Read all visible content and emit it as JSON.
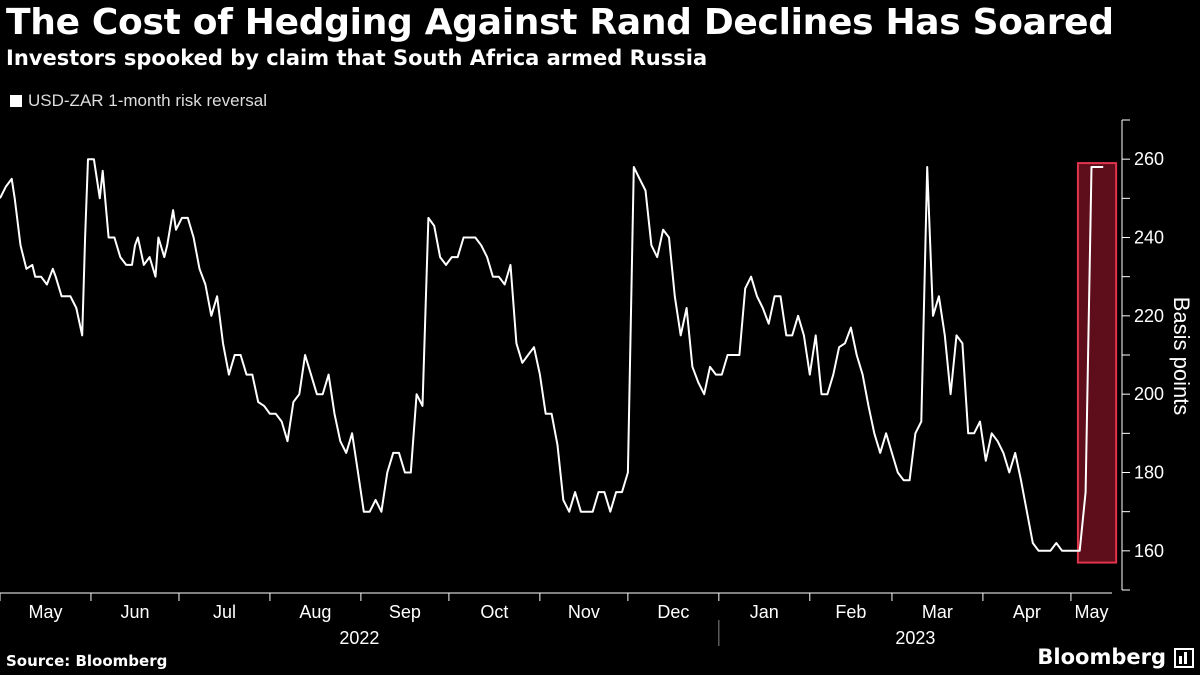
{
  "title": "The Cost of Hedging Against Rand Declines Has Soared",
  "subtitle": "Investors spooked by claim that South Africa armed Russia",
  "source": "Source: Bloomberg",
  "brand": "Bloomberg",
  "colors": {
    "background": "#000000",
    "line": "#ffffff",
    "highlight_fill": "#6e0f1f",
    "highlight_stroke": "#e0344b",
    "grid": "#2a2a2a"
  },
  "chart_data": {
    "type": "line",
    "title": "The Cost of Hedging Against Rand Declines Has Soared",
    "subtitle": "Investors spooked by claim that South Africa armed Russia",
    "ylabel": "Basis points",
    "ylim": [
      150,
      270
    ],
    "y_ticks": [
      160,
      180,
      200,
      220,
      240,
      260
    ],
    "y_axis_side": "right",
    "grid": false,
    "legend_position": "top-left",
    "x_month_labels": [
      "May",
      "Jun",
      "Jul",
      "Aug",
      "Sep",
      "Oct",
      "Nov",
      "Dec",
      "Jan",
      "Feb",
      "Mar",
      "Apr",
      "May"
    ],
    "x_year_labels": [
      "2022",
      "2023"
    ],
    "series": [
      {
        "name": "USD-ZAR 1-month risk reversal",
        "x": [
          "2022-05-01",
          "2022-05-03",
          "2022-05-05",
          "2022-05-06",
          "2022-05-08",
          "2022-05-10",
          "2022-05-12",
          "2022-05-13",
          "2022-05-15",
          "2022-05-17",
          "2022-05-19",
          "2022-05-20",
          "2022-05-22",
          "2022-05-23",
          "2022-05-25",
          "2022-05-27",
          "2022-05-29",
          "2022-05-30",
          "2022-05-31",
          "2022-06-02",
          "2022-06-04",
          "2022-06-05",
          "2022-06-07",
          "2022-06-09",
          "2022-06-11",
          "2022-06-13",
          "2022-06-15",
          "2022-06-16",
          "2022-06-17",
          "2022-06-19",
          "2022-06-21",
          "2022-06-23",
          "2022-06-24",
          "2022-06-26",
          "2022-06-27",
          "2022-06-29",
          "2022-06-30",
          "2022-07-02",
          "2022-07-04",
          "2022-07-06",
          "2022-07-08",
          "2022-07-10",
          "2022-07-12",
          "2022-07-14",
          "2022-07-16",
          "2022-07-18",
          "2022-07-20",
          "2022-07-22",
          "2022-07-24",
          "2022-07-26",
          "2022-07-28",
          "2022-07-30",
          "2022-08-01",
          "2022-08-03",
          "2022-08-05",
          "2022-08-07",
          "2022-08-09",
          "2022-08-11",
          "2022-08-13",
          "2022-08-15",
          "2022-08-17",
          "2022-08-19",
          "2022-08-21",
          "2022-08-23",
          "2022-08-25",
          "2022-08-27",
          "2022-08-29",
          "2022-08-31",
          "2022-09-02",
          "2022-09-04",
          "2022-09-06",
          "2022-09-08",
          "2022-09-10",
          "2022-09-12",
          "2022-09-14",
          "2022-09-16",
          "2022-09-18",
          "2022-09-20",
          "2022-09-22",
          "2022-09-24",
          "2022-09-26",
          "2022-09-28",
          "2022-09-30",
          "2022-10-02",
          "2022-10-04",
          "2022-10-06",
          "2022-10-08",
          "2022-10-10",
          "2022-10-12",
          "2022-10-14",
          "2022-10-16",
          "2022-10-18",
          "2022-10-20",
          "2022-10-22",
          "2022-10-24",
          "2022-10-26",
          "2022-10-28",
          "2022-10-30",
          "2022-11-01",
          "2022-11-03",
          "2022-11-05",
          "2022-11-07",
          "2022-11-09",
          "2022-11-11",
          "2022-11-13",
          "2022-11-15",
          "2022-11-17",
          "2022-11-19",
          "2022-11-21",
          "2022-11-23",
          "2022-11-25",
          "2022-11-27",
          "2022-11-29",
          "2022-12-01",
          "2022-12-03",
          "2022-12-05",
          "2022-12-07",
          "2022-12-09",
          "2022-12-11",
          "2022-12-13",
          "2022-12-15",
          "2022-12-17",
          "2022-12-19",
          "2022-12-21",
          "2022-12-23",
          "2022-12-25",
          "2022-12-27",
          "2022-12-29",
          "2022-12-31",
          "2023-01-02",
          "2023-01-04",
          "2023-01-06",
          "2023-01-08",
          "2023-01-10",
          "2023-01-12",
          "2023-01-14",
          "2023-01-16",
          "2023-01-18",
          "2023-01-20",
          "2023-01-22",
          "2023-01-24",
          "2023-01-26",
          "2023-01-28",
          "2023-01-30",
          "2023-02-01",
          "2023-02-03",
          "2023-02-05",
          "2023-02-07",
          "2023-02-09",
          "2023-02-11",
          "2023-02-13",
          "2023-02-15",
          "2023-02-17",
          "2023-02-19",
          "2023-02-21",
          "2023-02-23",
          "2023-02-25",
          "2023-02-27",
          "2023-03-01",
          "2023-03-03",
          "2023-03-05",
          "2023-03-07",
          "2023-03-09",
          "2023-03-11",
          "2023-03-13",
          "2023-03-15",
          "2023-03-17",
          "2023-03-19",
          "2023-03-21",
          "2023-03-23",
          "2023-03-25",
          "2023-03-27",
          "2023-03-29",
          "2023-03-31",
          "2023-04-02",
          "2023-04-04",
          "2023-04-06",
          "2023-04-08",
          "2023-04-10",
          "2023-04-12",
          "2023-04-14",
          "2023-04-16",
          "2023-04-18",
          "2023-04-20",
          "2023-04-22",
          "2023-04-24",
          "2023-04-26",
          "2023-04-28",
          "2023-04-30",
          "2023-05-02",
          "2023-05-04",
          "2023-05-06",
          "2023-05-08",
          "2023-05-10",
          "2023-05-12"
        ],
        "y": [
          250,
          253,
          255,
          250,
          238,
          232,
          233,
          230,
          230,
          228,
          232,
          230,
          225,
          225,
          225,
          222,
          215,
          240,
          260,
          260,
          250,
          257,
          240,
          240,
          235,
          233,
          233,
          238,
          240,
          233,
          235,
          230,
          240,
          235,
          238,
          247,
          242,
          245,
          245,
          240,
          232,
          228,
          220,
          225,
          213,
          205,
          210,
          210,
          205,
          205,
          198,
          197,
          195,
          195,
          193,
          188,
          198,
          200,
          210,
          205,
          200,
          200,
          205,
          195,
          188,
          185,
          190,
          180,
          170,
          170,
          173,
          170,
          180,
          185,
          185,
          180,
          180,
          200,
          197,
          245,
          243,
          235,
          233,
          235,
          235,
          240,
          240,
          240,
          238,
          235,
          230,
          230,
          228,
          233,
          213,
          208,
          210,
          212,
          205,
          195,
          195,
          187,
          173,
          170,
          175,
          170,
          170,
          170,
          175,
          175,
          170,
          175,
          175,
          180,
          258,
          255,
          252,
          238,
          235,
          242,
          240,
          225,
          215,
          222,
          207,
          203,
          200,
          207,
          205,
          205,
          210,
          210,
          210,
          227,
          230,
          225,
          222,
          218,
          225,
          225,
          215,
          215,
          220,
          215,
          205,
          215,
          200,
          200,
          205,
          212,
          213,
          217,
          210,
          205,
          197,
          190,
          185,
          190,
          185,
          180,
          178,
          178,
          190,
          193,
          258,
          220,
          225,
          215,
          200,
          215,
          213,
          190,
          190,
          193,
          183,
          190,
          188,
          185,
          180,
          185,
          178,
          170,
          162,
          160,
          160,
          160,
          162,
          160,
          160,
          160,
          160,
          175,
          258,
          258,
          258
        ],
        "color": "#ffffff"
      }
    ],
    "highlight": {
      "x_start": "2023-05-01",
      "x_end": "2023-05-13",
      "y_start": 157,
      "y_end": 259
    }
  }
}
